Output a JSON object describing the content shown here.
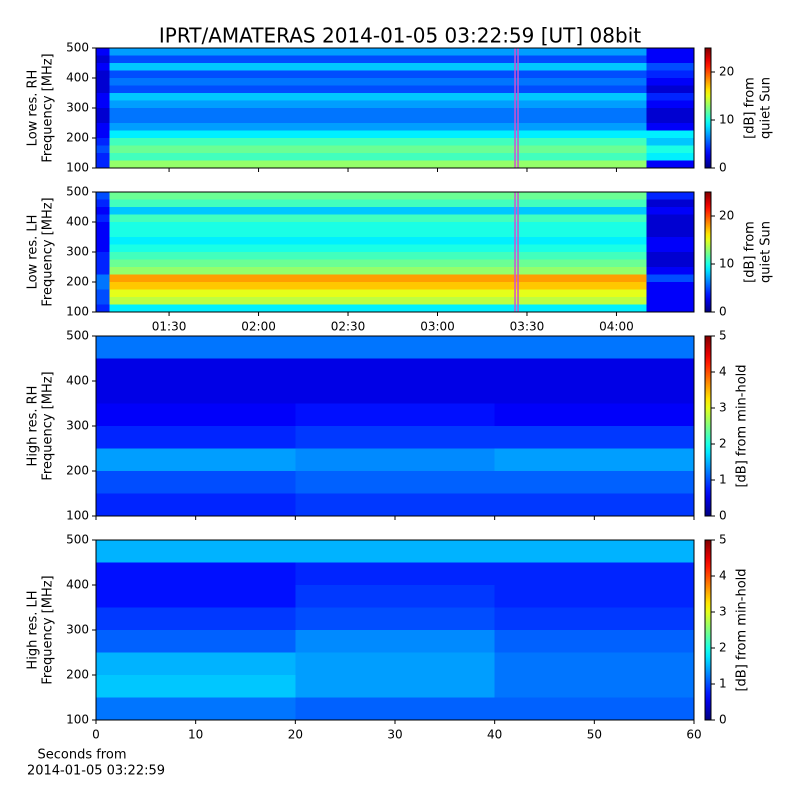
{
  "chart_data": [
    {
      "type": "heatmap",
      "title": "IPRT/AMATERAS 2014-01-05 03:22:59 [UT]   08bit",
      "ylabel": [
        "Low res. RH",
        "Frequency [MHz]"
      ],
      "ylim": [
        100,
        500
      ],
      "yticks": [
        100,
        200,
        300,
        400,
        500
      ],
      "xlim": [
        65.5,
        266
      ],
      "xticks": [
        {
          "value": 90,
          "label": "01:30"
        },
        {
          "value": 120,
          "label": "02:00"
        },
        {
          "value": 150,
          "label": "02:30"
        },
        {
          "value": 180,
          "label": "03:00"
        },
        {
          "value": 210,
          "label": "03:30"
        },
        {
          "value": 240,
          "label": "04:00"
        }
      ],
      "show_xtick_labels": false,
      "markers": [
        206,
        207
      ],
      "marker_color": "#d050d0",
      "xbins": [
        65.5,
        70,
        250,
        266
      ],
      "ybins": [
        100,
        125,
        150,
        175,
        200,
        225,
        250,
        275,
        300,
        325,
        350,
        375,
        400,
        425,
        450,
        475,
        500
      ],
      "z": [
        [
          4,
          13,
          3
        ],
        [
          4,
          11,
          9
        ],
        [
          5,
          12,
          10
        ],
        [
          4,
          11,
          8
        ],
        [
          3,
          9,
          9
        ],
        [
          3,
          7,
          3
        ],
        [
          2,
          6,
          2
        ],
        [
          2,
          6,
          2
        ],
        [
          3,
          7,
          3
        ],
        [
          3,
          8,
          4
        ],
        [
          2,
          5,
          2
        ],
        [
          2,
          6,
          3
        ],
        [
          2,
          5,
          4
        ],
        [
          3,
          8,
          5
        ],
        [
          2,
          5,
          3
        ],
        [
          3,
          7,
          3
        ]
      ],
      "colormap": "jet",
      "clim": [
        0,
        25
      ],
      "cticks": [
        0,
        10,
        20
      ],
      "clabel": [
        "[dB] from",
        "quiet Sun"
      ]
    },
    {
      "type": "heatmap",
      "ylabel": [
        "Low res. LH",
        "Frequency [MHz]"
      ],
      "ylim": [
        100,
        500
      ],
      "yticks": [
        100,
        200,
        300,
        400,
        500
      ],
      "xlim": [
        65.5,
        266
      ],
      "xticks": [
        {
          "value": 90,
          "label": "01:30"
        },
        {
          "value": 120,
          "label": "02:00"
        },
        {
          "value": 150,
          "label": "02:30"
        },
        {
          "value": 180,
          "label": "03:00"
        },
        {
          "value": 210,
          "label": "03:30"
        },
        {
          "value": 240,
          "label": "04:00"
        }
      ],
      "show_xtick_labels": true,
      "markers": [
        206,
        207
      ],
      "marker_color": "#d050d0",
      "xbins": [
        65.5,
        70,
        250,
        266
      ],
      "ybins": [
        100,
        125,
        150,
        175,
        200,
        225,
        250,
        275,
        300,
        325,
        350,
        375,
        400,
        425,
        450,
        475,
        500
      ],
      "z": [
        [
          4,
          9,
          3
        ],
        [
          5,
          14,
          3
        ],
        [
          5,
          15,
          3
        ],
        [
          6,
          17,
          3
        ],
        [
          6,
          18,
          5
        ],
        [
          4,
          13,
          3
        ],
        [
          4,
          12,
          2
        ],
        [
          4,
          11,
          2
        ],
        [
          3,
          10,
          3
        ],
        [
          3,
          9,
          3
        ],
        [
          3,
          10,
          2
        ],
        [
          3,
          10,
          2
        ],
        [
          4,
          11,
          2
        ],
        [
          3,
          8,
          3
        ],
        [
          4,
          11,
          2
        ],
        [
          5,
          12,
          4
        ]
      ],
      "colormap": "jet",
      "clim": [
        0,
        25
      ],
      "cticks": [
        0,
        10,
        20
      ],
      "clabel": [
        "[dB] from",
        "quiet Sun"
      ]
    },
    {
      "type": "heatmap",
      "ylabel": [
        "High res. RH",
        "Frequency [MHz]"
      ],
      "ylim": [
        100,
        500
      ],
      "yticks": [
        100,
        200,
        300,
        400,
        500
      ],
      "xlim": [
        0,
        60
      ],
      "xticks": [
        0,
        10,
        20,
        30,
        40,
        50,
        60
      ],
      "show_xtick_labels": false,
      "xbins": [
        0,
        20,
        40,
        60
      ],
      "ybins": [
        100,
        150,
        200,
        250,
        300,
        350,
        400,
        450,
        500
      ],
      "z": [
        [
          0.8,
          0.9,
          0.9
        ],
        [
          1.0,
          1.1,
          1.1
        ],
        [
          1.4,
          1.3,
          1.4
        ],
        [
          0.8,
          0.9,
          0.9
        ],
        [
          0.6,
          0.7,
          0.6
        ],
        [
          0.5,
          0.5,
          0.5
        ],
        [
          0.5,
          0.5,
          0.5
        ],
        [
          1.2,
          1.2,
          1.2
        ]
      ],
      "colormap": "jet",
      "clim": [
        0,
        5
      ],
      "cticks": [
        0,
        1,
        2,
        3,
        4,
        5
      ],
      "clabel": [
        "[dB] from min-hold"
      ]
    },
    {
      "type": "heatmap",
      "ylabel": [
        "High res. LH",
        "Frequency [MHz]"
      ],
      "ylim": [
        100,
        500
      ],
      "yticks": [
        100,
        200,
        300,
        400,
        500
      ],
      "xlim": [
        0,
        60
      ],
      "xticks": [
        0,
        10,
        20,
        30,
        40,
        50,
        60
      ],
      "show_xtick_labels": true,
      "xlabel": [
        "Seconds from",
        "2014-01-05 03:22:59"
      ],
      "xbins": [
        0,
        20,
        40,
        60
      ],
      "ybins": [
        100,
        150,
        200,
        250,
        300,
        350,
        400,
        450,
        500
      ],
      "z": [
        [
          1.2,
          1.1,
          1.1
        ],
        [
          1.6,
          1.4,
          1.2
        ],
        [
          1.5,
          1.4,
          1.2
        ],
        [
          1.1,
          1.3,
          1.1
        ],
        [
          0.9,
          1.0,
          0.9
        ],
        [
          0.7,
          0.9,
          0.8
        ],
        [
          0.7,
          0.8,
          0.8
        ],
        [
          1.5,
          1.5,
          1.5
        ]
      ],
      "colormap": "jet",
      "clim": [
        0,
        5
      ],
      "cticks": [
        0,
        1,
        2,
        3,
        4,
        5
      ],
      "clabel": [
        "[dB] from min-hold"
      ]
    }
  ]
}
